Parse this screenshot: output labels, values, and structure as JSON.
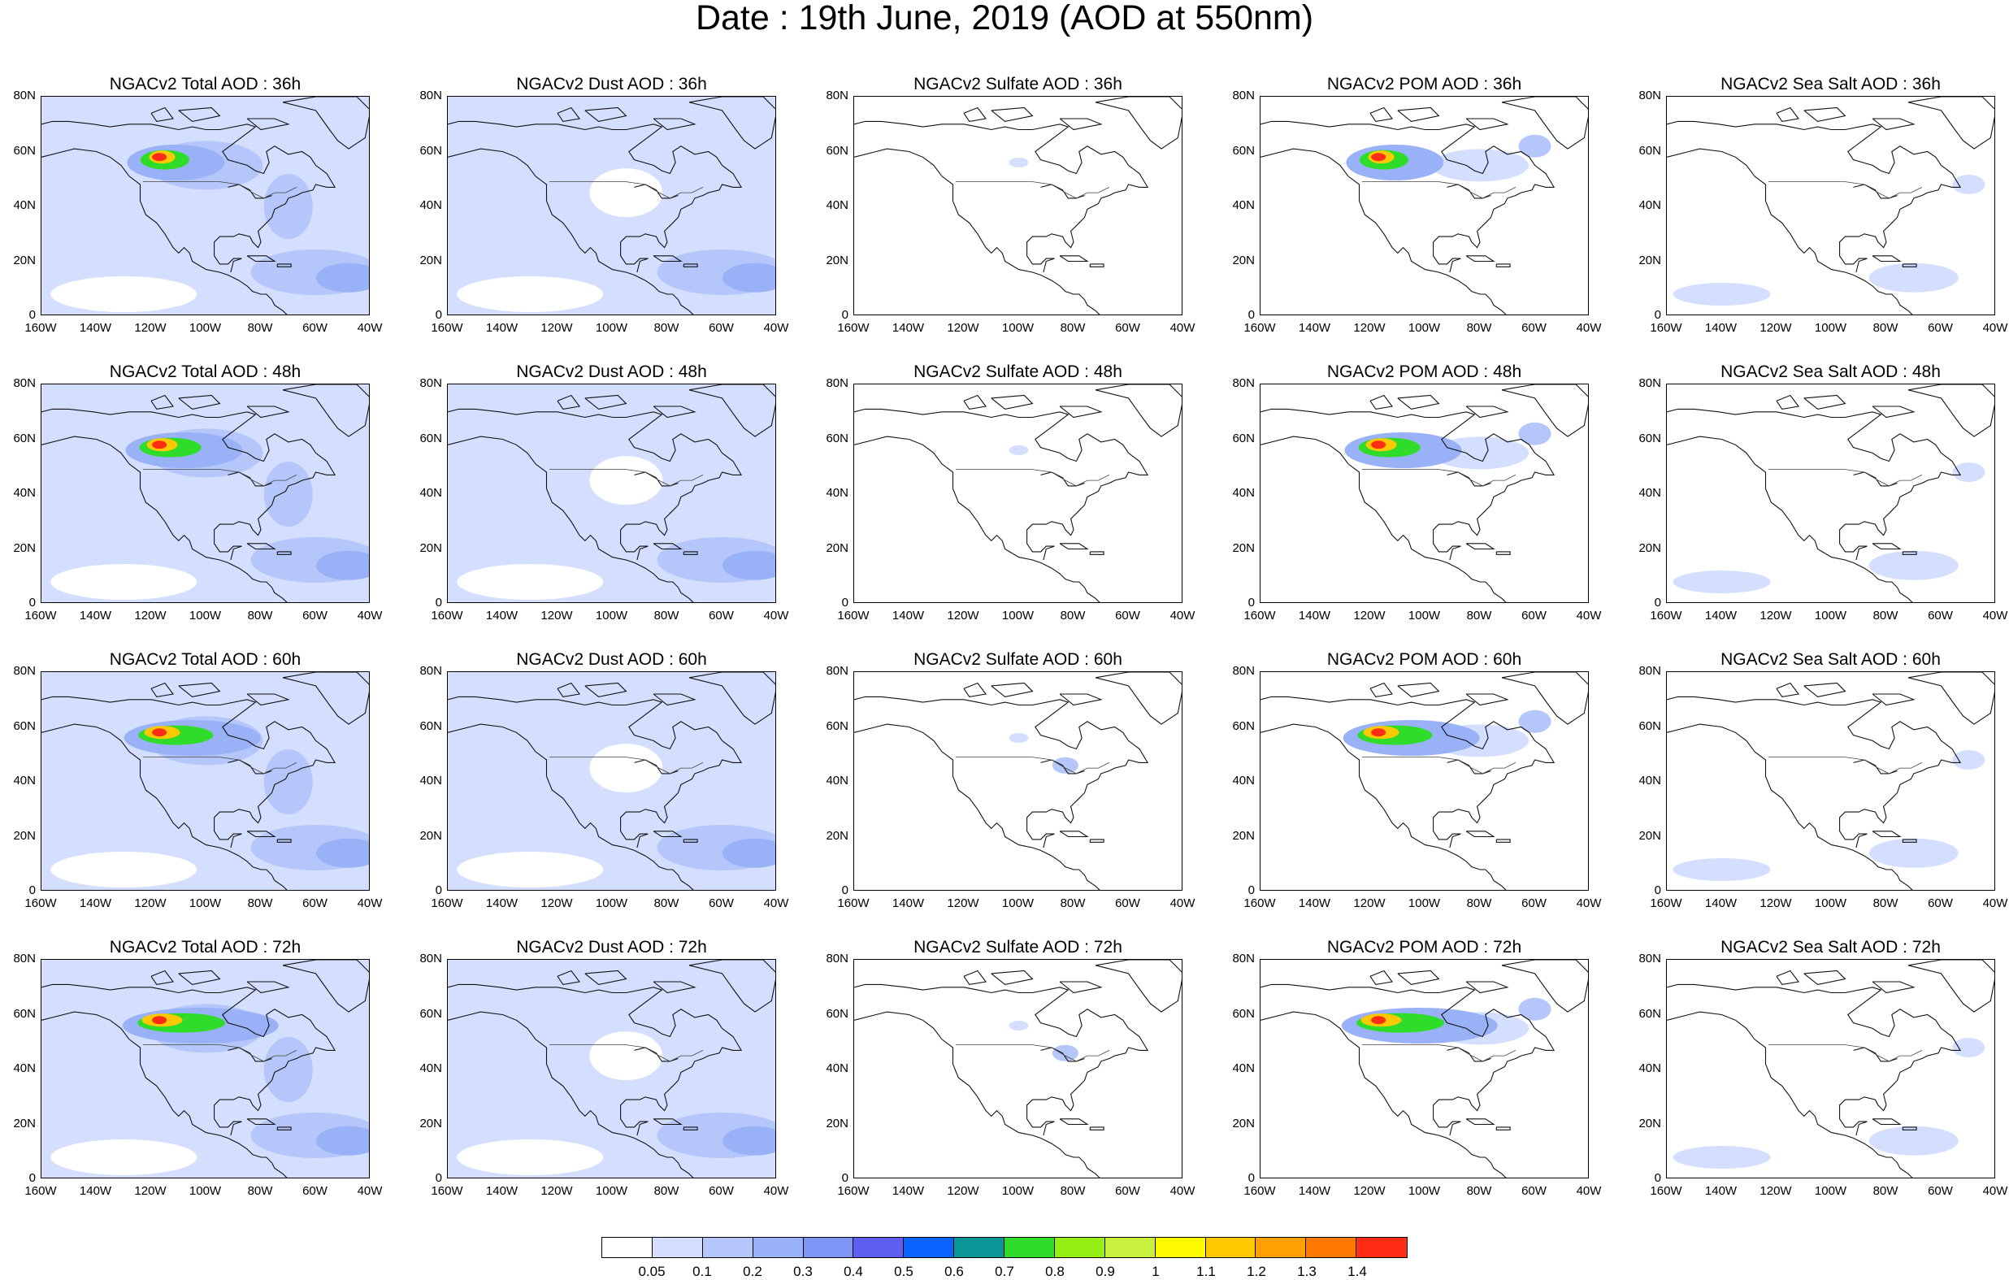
{
  "title": "Date : 19th June, 2019 (AOD at 550nm)",
  "chart_data": {
    "type": "heatmap",
    "description_type": "map panels",
    "rows": [
      "36h",
      "48h",
      "60h",
      "72h"
    ],
    "columns": [
      "Total",
      "Dust",
      "Sulfate",
      "POM",
      "Sea Salt"
    ],
    "panels": [
      {
        "title": "NGACv2 Total AOD : 36h"
      },
      {
        "title": "NGACv2 Dust AOD : 36h"
      },
      {
        "title": "NGACv2 Sulfate AOD : 36h"
      },
      {
        "title": "NGACv2 POM AOD : 36h"
      },
      {
        "title": "NGACv2 Sea Salt AOD : 36h"
      },
      {
        "title": "NGACv2 Total AOD : 48h"
      },
      {
        "title": "NGACv2 Dust AOD : 48h"
      },
      {
        "title": "NGACv2 Sulfate AOD : 48h"
      },
      {
        "title": "NGACv2 POM AOD : 48h"
      },
      {
        "title": "NGACv2 Sea Salt AOD : 48h"
      },
      {
        "title": "NGACv2 Total AOD : 60h"
      },
      {
        "title": "NGACv2 Dust AOD : 60h"
      },
      {
        "title": "NGACv2 Sulfate AOD : 60h"
      },
      {
        "title": "NGACv2 POM AOD : 60h"
      },
      {
        "title": "NGACv2 Sea Salt AOD : 60h"
      },
      {
        "title": "NGACv2 Total AOD : 72h"
      },
      {
        "title": "NGACv2 Dust AOD : 72h"
      },
      {
        "title": "NGACv2 Sulfate AOD : 72h"
      },
      {
        "title": "NGACv2 POM AOD : 72h"
      },
      {
        "title": "NGACv2 Sea Salt  AOD : 72h"
      }
    ],
    "x_ticks": [
      "160W",
      "140W",
      "120W",
      "100W",
      "80W",
      "60W",
      "40W"
    ],
    "y_ticks": [
      "0",
      "20N",
      "40N",
      "60N",
      "80N"
    ],
    "xlim": [
      -160,
      -40
    ],
    "ylim": [
      0,
      80
    ],
    "colorbar": {
      "levels": [
        "0.05",
        "0.1",
        "0.2",
        "0.3",
        "0.4",
        "0.5",
        "0.6",
        "0.7",
        "0.8",
        "0.9",
        "1",
        "1.1",
        "1.2",
        "1.3",
        "1.4"
      ],
      "colors": [
        "#ffffff",
        "#d4deff",
        "#b4c6fa",
        "#98b1f7",
        "#7f95f5",
        "#5e5ef0",
        "#0a64ff",
        "#089696",
        "#30dc2a",
        "#94f015",
        "#c8f03c",
        "#fffa00",
        "#ffc800",
        "#ffa000",
        "#ff7800",
        "#ff2d14"
      ]
    },
    "smoke_plume": {
      "lat": 58,
      "lon": -117
    }
  }
}
